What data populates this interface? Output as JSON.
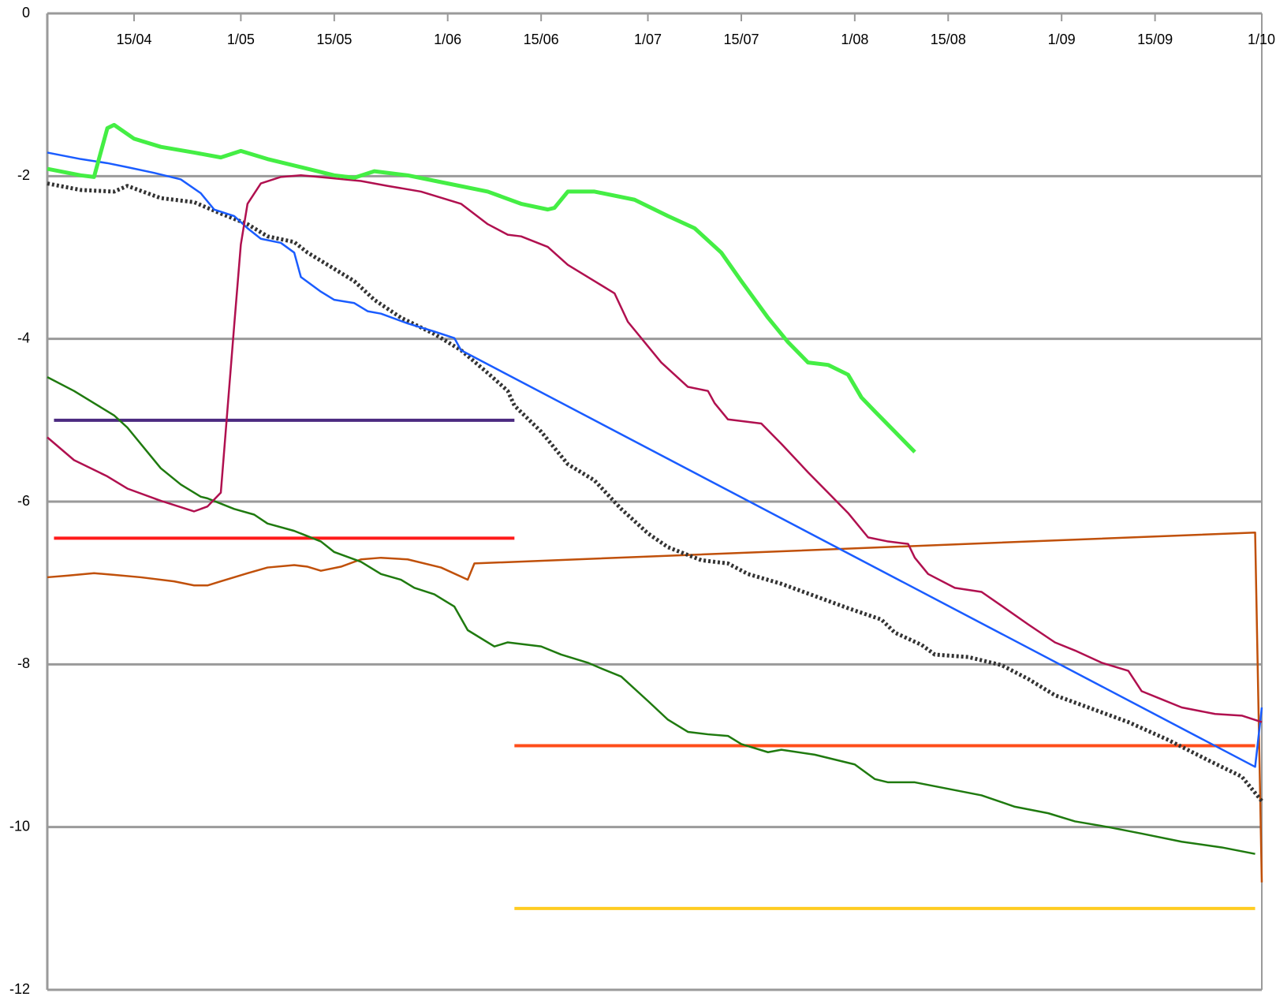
{
  "chart_data": {
    "type": "line",
    "xlim": [
      "2/04",
      "1/10"
    ],
    "xticks": [
      "15/04",
      "1/05",
      "15/05",
      "1/06",
      "15/06",
      "1/07",
      "15/07",
      "1/08",
      "15/08",
      "1/09",
      "15/09",
      "1/10"
    ],
    "ylim": [
      -12,
      0
    ],
    "yticks": [
      0,
      -2,
      -4,
      -6,
      -8,
      -10,
      -12
    ],
    "grid": true,
    "series": [
      {
        "color": "#4b2a80",
        "width": 4,
        "x": [
          "3/04",
          "11/06"
        ],
        "values": [
          -5,
          -5
        ]
      },
      {
        "color": "#ff1a1a",
        "width": 4,
        "x": [
          "3/04",
          "11/06"
        ],
        "values": [
          -6.45,
          -6.45
        ]
      },
      {
        "color": "#ff4d1a",
        "width": 4,
        "x": [
          "11/06",
          "30/09"
        ],
        "values": [
          -9,
          -9
        ]
      },
      {
        "color": "#ffcc22",
        "width": 4,
        "x": [
          "11/06",
          "30/09"
        ],
        "values": [
          -11,
          -11
        ]
      },
      {
        "color": "#c0500a",
        "width": 2.5,
        "x": [
          "2/04",
          "5/04",
          "9/04",
          "12/04",
          "16/04",
          "21/04",
          "24/04",
          "26/04",
          "28/04",
          "2/05",
          "5/05",
          "9/05",
          "11/05",
          "13/05",
          "16/05",
          "19/05",
          "22/05",
          "26/05",
          "31/05",
          "4/06",
          "5/06",
          "30/09",
          "1/10"
        ],
        "values": [
          -6.93,
          -6.91,
          -6.88,
          -6.9,
          -6.93,
          -6.98,
          -7.03,
          -7.03,
          -6.98,
          -6.88,
          -6.81,
          -6.78,
          -6.8,
          -6.85,
          -6.8,
          -6.71,
          -6.69,
          -6.71,
          -6.81,
          -6.96,
          -6.76,
          -6.38,
          -10.68
        ]
      },
      {
        "color": "#1f7a0f",
        "width": 2.5,
        "x": [
          "2/04",
          "6/04",
          "9/04",
          "12/04",
          "14/04",
          "17/04",
          "19/04",
          "22/04",
          "25/04",
          "26/04",
          "30/04",
          "3/05",
          "5/05",
          "9/05",
          "13/05",
          "15/05",
          "19/05",
          "22/05",
          "25/05",
          "27/05",
          "30/05",
          "2/06",
          "4/06",
          "8/06",
          "10/06",
          "15/06",
          "18/06",
          "22/06",
          "24/06",
          "27/06",
          "1/07",
          "4/07",
          "7/07",
          "10/07",
          "13/07",
          "15/07",
          "19/07",
          "21/07",
          "26/07",
          "1/08",
          "4/08",
          "6/08",
          "10/08",
          "15/08",
          "20/08",
          "25/08",
          "30/08",
          "3/09",
          "8/09",
          "13/09",
          "19/09",
          "25/09",
          "30/09"
        ],
        "values": [
          -4.47,
          -4.64,
          -4.79,
          -4.94,
          -5.09,
          -5.39,
          -5.59,
          -5.79,
          -5.94,
          -5.96,
          -6.09,
          -6.16,
          -6.27,
          -6.36,
          -6.49,
          -6.62,
          -6.74,
          -6.89,
          -6.96,
          -7.06,
          -7.14,
          -7.29,
          -7.58,
          -7.78,
          -7.73,
          -7.78,
          -7.88,
          -7.98,
          -8.05,
          -8.15,
          -8.45,
          -8.68,
          -8.83,
          -8.86,
          -8.88,
          -8.98,
          -9.08,
          -9.05,
          -9.11,
          -9.23,
          -9.41,
          -9.45,
          -9.45,
          -9.53,
          -9.61,
          -9.75,
          -9.83,
          -9.93,
          -10,
          -10.08,
          -10.18,
          -10.25,
          -10.33
        ]
      },
      {
        "color": "#333333",
        "width": 5,
        "style": "dotted",
        "x": [
          "2/04",
          "7/04",
          "12/04",
          "14/04",
          "19/04",
          "24/04",
          "28/04",
          "2/05",
          "5/05",
          "9/05",
          "11/05",
          "14/05",
          "18/05",
          "21/05",
          "25/05",
          "30/05",
          "3/06",
          "7/06",
          "10/06",
          "11/06",
          "15/06",
          "19/06",
          "23/06",
          "27/06",
          "1/07",
          "4/07",
          "9/07",
          "13/07",
          "16/07",
          "21/07",
          "26/07",
          "31/07",
          "5/08",
          "7/08",
          "11/08",
          "13/08",
          "18/08",
          "23/08",
          "27/08",
          "31/08",
          "5/09",
          "11/09",
          "17/09",
          "23/09",
          "28/09",
          "1/10"
        ],
        "values": [
          -2.09,
          -2.17,
          -2.19,
          -2.12,
          -2.27,
          -2.32,
          -2.46,
          -2.59,
          -2.74,
          -2.81,
          -2.94,
          -3.09,
          -3.29,
          -3.52,
          -3.74,
          -3.94,
          -4.14,
          -4.42,
          -4.64,
          -4.82,
          -5.14,
          -5.54,
          -5.74,
          -6.09,
          -6.39,
          -6.56,
          -6.72,
          -6.76,
          -6.89,
          -7.01,
          -7.16,
          -7.31,
          -7.45,
          -7.61,
          -7.76,
          -7.88,
          -7.91,
          -8.01,
          -8.18,
          -8.38,
          -8.53,
          -8.71,
          -8.93,
          -9.18,
          -9.38,
          -9.68
        ]
      },
      {
        "color": "#1a5cff",
        "width": 2.5,
        "x": [
          "2/04",
          "7/04",
          "11/04",
          "14/04",
          "18/04",
          "22/04",
          "25/04",
          "27/04",
          "30/04",
          "2/05",
          "4/05",
          "7/05",
          "9/05",
          "10/05",
          "13/05",
          "15/05",
          "18/05",
          "20/05",
          "22/05",
          "26/05",
          "30/05",
          "2/06",
          "3/06",
          "30/09",
          "1/10"
        ],
        "values": [
          -1.71,
          -1.79,
          -1.84,
          -1.89,
          -1.96,
          -2.04,
          -2.21,
          -2.41,
          -2.49,
          -2.64,
          -2.77,
          -2.82,
          -2.94,
          -3.24,
          -3.42,
          -3.52,
          -3.56,
          -3.66,
          -3.69,
          -3.81,
          -3.91,
          -3.99,
          -4.14,
          -9.26,
          -8.53
        ]
      },
      {
        "color": "#b0104f",
        "width": 2.5,
        "x": [
          "2/04",
          "6/04",
          "11/04",
          "14/04",
          "19/04",
          "24/04",
          "26/04",
          "28/04",
          "30/04",
          "1/05",
          "2/05",
          "4/05",
          "7/05",
          "10/05",
          "14/05",
          "19/05",
          "23/05",
          "28/05",
          "3/06",
          "7/06",
          "10/06",
          "12/06",
          "16/06",
          "19/06",
          "23/06",
          "26/06",
          "28/06",
          "1/07",
          "3/07",
          "7/07",
          "10/07",
          "11/07",
          "13/07",
          "18/07",
          "21/07",
          "25/07",
          "28/07",
          "31/07",
          "3/08",
          "6/08",
          "9/08",
          "10/08",
          "12/08",
          "16/08",
          "20/08",
          "23/08",
          "27/08",
          "31/08",
          "3/09",
          "7/09",
          "11/09",
          "13/09",
          "16/09",
          "19/09",
          "24/09",
          "28/09",
          "1/10"
        ],
        "values": [
          -5.21,
          -5.49,
          -5.69,
          -5.84,
          -5.99,
          -6.12,
          -6.06,
          -5.89,
          -3.84,
          -2.84,
          -2.34,
          -2.09,
          -2.01,
          -1.99,
          -2.02,
          -2.06,
          -2.12,
          -2.19,
          -2.34,
          -2.59,
          -2.72,
          -2.74,
          -2.87,
          -3.09,
          -3.29,
          -3.44,
          -3.79,
          -4.09,
          -4.29,
          -4.59,
          -4.64,
          -4.79,
          -4.99,
          -5.04,
          -5.29,
          -5.64,
          -5.89,
          -6.14,
          -6.44,
          -6.49,
          -6.52,
          -6.69,
          -6.89,
          -7.06,
          -7.11,
          -7.28,
          -7.51,
          -7.73,
          -7.83,
          -7.98,
          -8.08,
          -8.33,
          -8.43,
          -8.53,
          -8.61,
          -8.63,
          -8.71
        ]
      },
      {
        "color": "#44ee44",
        "width": 5,
        "x": [
          "2/04",
          "7/04",
          "9/04",
          "11/04",
          "12/04",
          "15/04",
          "19/04",
          "24/04",
          "28/04",
          "1/05",
          "5/05",
          "10/05",
          "15/05",
          "18/05",
          "21/05",
          "26/05",
          "1/06",
          "7/06",
          "12/06",
          "16/06",
          "17/06",
          "19/06",
          "23/06",
          "29/06",
          "4/07",
          "8/07",
          "12/07",
          "15/07",
          "19/07",
          "22/07",
          "25/07",
          "28/07",
          "31/07",
          "2/08",
          "4/08",
          "7/08",
          "10/08"
        ],
        "values": [
          -1.91,
          -1.99,
          -2.01,
          -1.41,
          -1.37,
          -1.54,
          -1.64,
          -1.71,
          -1.77,
          -1.69,
          -1.79,
          -1.89,
          -1.99,
          -2.02,
          -1.94,
          -1.99,
          -2.09,
          -2.19,
          -2.34,
          -2.41,
          -2.39,
          -2.19,
          -2.19,
          -2.29,
          -2.49,
          -2.64,
          -2.94,
          -3.29,
          -3.74,
          -4.04,
          -4.29,
          -4.32,
          -4.44,
          -4.72,
          -4.89,
          -5.14,
          -5.39
        ]
      }
    ]
  }
}
